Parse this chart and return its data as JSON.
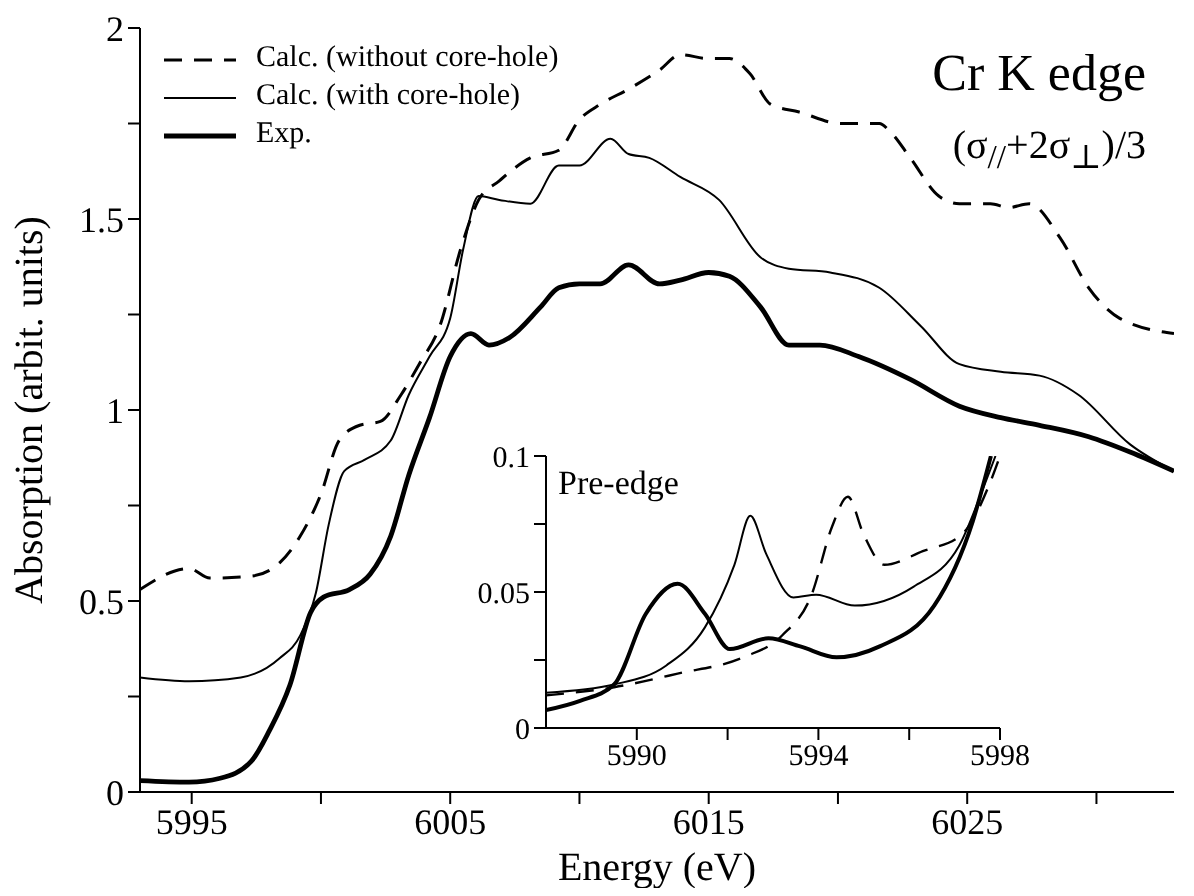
{
  "chart_data": [
    {
      "type": "line",
      "xlabel": "Energy (eV)",
      "ylabel": "Absorption (arbit. units)",
      "xlim": [
        5993,
        6033
      ],
      "ylim": [
        0,
        2
      ],
      "xticks": [
        5995,
        {
          "value": 6000,
          "label": null
        },
        6005,
        {
          "value": 6010,
          "label": null
        },
        6015,
        {
          "value": 6020,
          "label": null
        },
        6025,
        {
          "value": 6030,
          "label": null
        }
      ],
      "yticks": [
        0,
        {
          "value": 0.25,
          "label": null
        },
        0.5,
        {
          "value": 0.75,
          "label": null
        },
        1,
        {
          "value": 1.25,
          "label": null
        },
        1.5,
        {
          "value": 1.75,
          "label": null
        },
        2
      ],
      "legend": "top left",
      "grid": false,
      "marker": "none",
      "annotations": [
        "Cr K edge",
        "(σ$_{//}$+2σ$_{⊥}$)/3"
      ],
      "series": [
        {
          "name": "Calc. (without core-hole)",
          "color": "#000000",
          "line_style": "dashed",
          "x": [
            5993,
            5994.9,
            5995.7,
            5997.3,
            5998.4,
            5999.2,
            6000.0,
            6000.7,
            6001.5,
            6002.3,
            6003.1,
            6003.8,
            6004.6,
            6005.4,
            6006.1,
            6006.9,
            6008.1,
            6009.2,
            6010.0,
            6010.8,
            6011.9,
            6013.1,
            6013.9,
            6015.0,
            6015.8,
            6016.6,
            6017.4,
            6018.5,
            6020.1,
            6021.6,
            6022.0,
            6022.8,
            6023.9,
            6024.7,
            6025.9,
            6026.6,
            6027.4,
            6028.6,
            6029.7,
            6030.9,
            6033.0
          ],
          "values": [
            0.53,
            0.585,
            0.56,
            0.565,
            0.6,
            0.67,
            0.78,
            0.92,
            0.96,
            0.97,
            1.04,
            1.12,
            1.22,
            1.42,
            1.55,
            1.6,
            1.66,
            1.68,
            1.76,
            1.8,
            1.84,
            1.89,
            1.93,
            1.92,
            1.92,
            1.88,
            1.8,
            1.78,
            1.75,
            1.75,
            1.73,
            1.66,
            1.56,
            1.54,
            1.54,
            1.53,
            1.54,
            1.45,
            1.32,
            1.24,
            1.2
          ]
        },
        {
          "name": "Calc. (with core-hole)",
          "color": "#000000",
          "line_style": "solid",
          "x": [
            5993,
            5994.9,
            5996.9,
            5998.4,
            5999.2,
            5999.8,
            6000.3,
            6000.9,
            6001.7,
            6002.7,
            6003.4,
            6004.2,
            6005.0,
            6005.5,
            6006.1,
            6006.9,
            6008.1,
            6009.2,
            6010.0,
            6011.2,
            6011.9,
            6012.7,
            6013.9,
            6015.4,
            6017.0,
            6018.1,
            6019.7,
            6021.6,
            6023.2,
            6024.7,
            6026.3,
            6027.8,
            6029.3,
            6031.3,
            6033.0
          ],
          "values": [
            0.3,
            0.29,
            0.3,
            0.35,
            0.41,
            0.52,
            0.7,
            0.84,
            0.87,
            0.92,
            1.04,
            1.14,
            1.24,
            1.42,
            1.56,
            1.55,
            1.54,
            1.64,
            1.64,
            1.71,
            1.67,
            1.66,
            1.61,
            1.55,
            1.4,
            1.37,
            1.36,
            1.32,
            1.22,
            1.12,
            1.1,
            1.09,
            1.04,
            0.91,
            0.84
          ]
        },
        {
          "name": "Exp.",
          "color": "#000000",
          "line_style": "solid",
          "x": [
            5993,
            5994.9,
            5996.1,
            5997.3,
            5998.0,
            5998.8,
            5999.6,
            6000.1,
            6001.1,
            6001.9,
            6002.7,
            6003.4,
            6004.2,
            6005.0,
            6005.8,
            6006.5,
            6007.3,
            6008.5,
            6009.2,
            6010.0,
            6010.8,
            6011.9,
            6013.1,
            6013.9,
            6015.0,
            6015.8,
            6017.0,
            6018.1,
            6019.3,
            6020.8,
            6022.8,
            6024.7,
            6026.3,
            6027.8,
            6029.7,
            6031.3,
            6033.0
          ],
          "values": [
            0.03,
            0.026,
            0.036,
            0.08,
            0.16,
            0.28,
            0.47,
            0.51,
            0.53,
            0.57,
            0.67,
            0.83,
            0.98,
            1.14,
            1.2,
            1.17,
            1.19,
            1.27,
            1.32,
            1.33,
            1.33,
            1.38,
            1.33,
            1.34,
            1.36,
            1.35,
            1.27,
            1.17,
            1.17,
            1.14,
            1.08,
            1.01,
            0.98,
            0.96,
            0.93,
            0.89,
            0.84
          ]
        }
      ]
    },
    {
      "type": "line",
      "title": "Pre-edge",
      "xlim": [
        5988,
        5998
      ],
      "ylim": [
        0,
        0.1
      ],
      "xticks": [
        5990,
        {
          "value": 5992,
          "label": null
        },
        5994,
        {
          "value": 5996,
          "label": null
        },
        5998
      ],
      "yticks": [
        0,
        {
          "value": 0.025,
          "label": null
        },
        0.05,
        {
          "value": 0.075,
          "label": null
        },
        0.1
      ],
      "legend": false,
      "grid": false,
      "marker": "none",
      "series": [
        {
          "color": "#000000",
          "line_style": "dashed",
          "x": [
            5988,
            5989.5,
            5990.9,
            5992.35,
            5993.2,
            5993.85,
            5994.3,
            5994.65,
            5995.0,
            5995.45,
            5996.3,
            5997.15,
            5997.8,
            5998.0
          ],
          "values": [
            0.012,
            0.015,
            0.02,
            0.026,
            0.034,
            0.049,
            0.074,
            0.085,
            0.071,
            0.06,
            0.065,
            0.071,
            0.091,
            0.1
          ]
        },
        {
          "color": "#000000",
          "line_style": "solid",
          "x": [
            5988,
            5989.5,
            5990.65,
            5991.5,
            5992.15,
            5992.5,
            5992.85,
            5993.45,
            5993.95,
            5994.8,
            5996.1,
            5997.1,
            5997.65,
            5997.9
          ],
          "values": [
            0.013,
            0.016,
            0.023,
            0.037,
            0.06,
            0.078,
            0.064,
            0.048,
            0.049,
            0.045,
            0.052,
            0.067,
            0.089,
            0.1
          ]
        },
        {
          "color": "#000000",
          "line_style": "solid",
          "x": [
            5988,
            5988.75,
            5989.5,
            5990.2,
            5990.9,
            5991.5,
            5992.05,
            5992.9,
            5993.6,
            5994.4,
            5995.35,
            5996.55,
            5997.4,
            5997.8
          ],
          "values": [
            0.0066,
            0.01,
            0.016,
            0.042,
            0.053,
            0.042,
            0.029,
            0.033,
            0.03,
            0.026,
            0.03,
            0.045,
            0.076,
            0.1
          ]
        }
      ]
    }
  ]
}
